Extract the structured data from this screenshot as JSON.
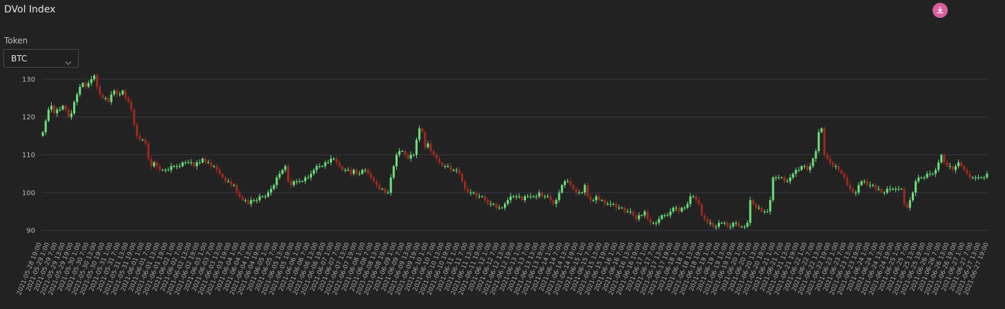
{
  "header": {
    "title": "DVol Index"
  },
  "controls": {
    "token_label": "Token",
    "token_value": "BTC",
    "download_icon": "download-icon"
  },
  "colors": {
    "up": "#6cdf7b",
    "down": "#9c2a21",
    "grid": "#363644",
    "accent": "#d9609d"
  },
  "chart_data": {
    "type": "candlestick",
    "title": "DVol Index",
    "ylim": [
      88,
      132
    ],
    "yticks": [
      90,
      100,
      110,
      120,
      130
    ],
    "grid": true,
    "closes": [
      116,
      119,
      122,
      123,
      121,
      122,
      122,
      123,
      122,
      120,
      121,
      124,
      126,
      128,
      129,
      128,
      129,
      130,
      131,
      128,
      126,
      125,
      125,
      124,
      126,
      127,
      126,
      126,
      127,
      125,
      124,
      122,
      118,
      115,
      114,
      114,
      113,
      109,
      107,
      108,
      107,
      106,
      106,
      106,
      106,
      107,
      107,
      107,
      107,
      108,
      108,
      108,
      108,
      107,
      108,
      108,
      109,
      108,
      108,
      107,
      107,
      106,
      105,
      104,
      103,
      103,
      102,
      102,
      100,
      99,
      98,
      98,
      97,
      98,
      98,
      98,
      99,
      99,
      99,
      100,
      101,
      102,
      104,
      105,
      106,
      107,
      103,
      102,
      103,
      103,
      103,
      103,
      104,
      104,
      105,
      106,
      107,
      107,
      107,
      108,
      108,
      109,
      109,
      108,
      107,
      106,
      106,
      106,
      105,
      106,
      105,
      105,
      106,
      106,
      105,
      104,
      103,
      102,
      101,
      101,
      100,
      100,
      104,
      107,
      110,
      111,
      111,
      110,
      109,
      110,
      110,
      114,
      117,
      116,
      112,
      113,
      111,
      110,
      109,
      108,
      107,
      107,
      107,
      106,
      106,
      106,
      105,
      103,
      101,
      100,
      100,
      100,
      99,
      99,
      99,
      98,
      97,
      97,
      97,
      96,
      96,
      96,
      97,
      98,
      99,
      99,
      99,
      99,
      98,
      99,
      99,
      99,
      99,
      99,
      100,
      99,
      99,
      99,
      98,
      97,
      98,
      100,
      102,
      103,
      103,
      102,
      101,
      100,
      100,
      100,
      102,
      99,
      98,
      98,
      99,
      98,
      98,
      97,
      97,
      97,
      97,
      96,
      96,
      96,
      95,
      95,
      95,
      94,
      93,
      94,
      94,
      95,
      93,
      92,
      92,
      92,
      93,
      94,
      94,
      94,
      95,
      96,
      96,
      95,
      96,
      96,
      97,
      99,
      99,
      98,
      97,
      94,
      93,
      92,
      92,
      91,
      91,
      92,
      92,
      92,
      91,
      91,
      92,
      92,
      91,
      91,
      91,
      92,
      98,
      97,
      96,
      96,
      95,
      95,
      95,
      98,
      104,
      104,
      104,
      104,
      103,
      103,
      104,
      105,
      106,
      106,
      107,
      107,
      106,
      107,
      109,
      111,
      116,
      117,
      110,
      109,
      108,
      107,
      107,
      106,
      105,
      104,
      102,
      101,
      100,
      100,
      102,
      103,
      103,
      102,
      102,
      102,
      101,
      101,
      100,
      100,
      101,
      101,
      101,
      101,
      101,
      101,
      97,
      96,
      98,
      100,
      103,
      104,
      104,
      104,
      105,
      105,
      105,
      106,
      108,
      110,
      108,
      107,
      107,
      106,
      107,
      108,
      107,
      106,
      105,
      104,
      104,
      104,
      104,
      104,
      104,
      105
    ]
  }
}
